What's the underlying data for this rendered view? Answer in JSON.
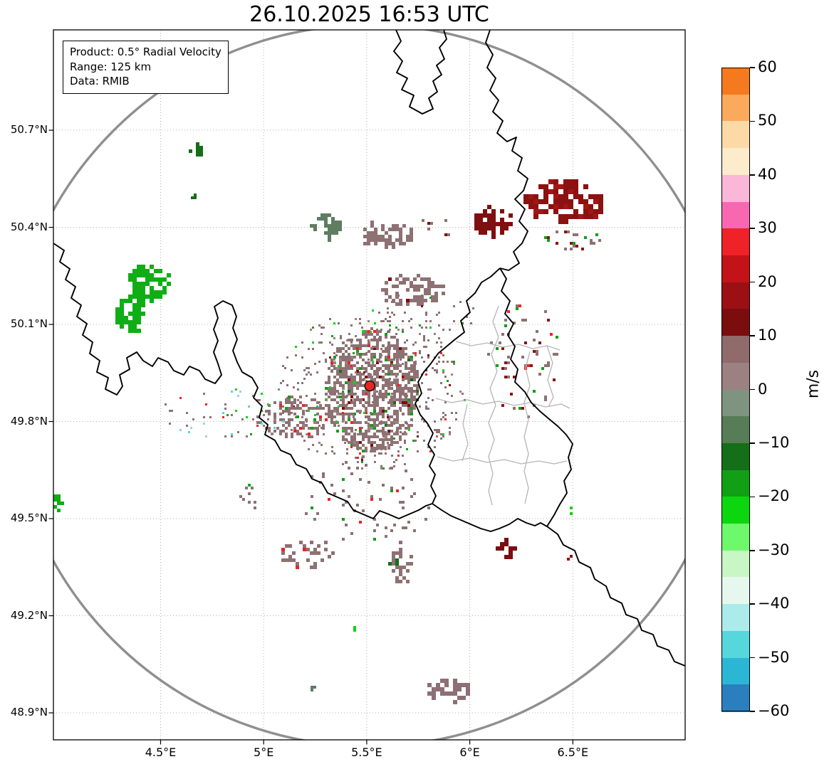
{
  "title": "26.10.2025 16:53 UTC",
  "info_box": {
    "lines": [
      "Product: 0.5° Radial Velocity",
      "Range: 125 km",
      "Data: RMIB"
    ]
  },
  "x_axis": {
    "ticks": [
      {
        "label": "4.5°E",
        "value": 4.5
      },
      {
        "label": "5°E",
        "value": 5.0
      },
      {
        "label": "5.5°E",
        "value": 5.5
      },
      {
        "label": "6°E",
        "value": 6.0
      },
      {
        "label": "6.5°E",
        "value": 6.5
      }
    ]
  },
  "y_axis": {
    "ticks": [
      {
        "label": "50.7°N",
        "value": 50.7
      },
      {
        "label": "50.4°N",
        "value": 50.4
      },
      {
        "label": "50.1°N",
        "value": 50.1
      },
      {
        "label": "49.8°N",
        "value": 49.8
      },
      {
        "label": "49.5°N",
        "value": 49.5
      },
      {
        "label": "49.2°N",
        "value": 49.2
      },
      {
        "label": "48.9°N",
        "value": 48.9
      }
    ]
  },
  "colorbar": {
    "label": "m/s",
    "ticks": [
      {
        "label": "60",
        "value": 60
      },
      {
        "label": "50",
        "value": 50
      },
      {
        "label": "40",
        "value": 40
      },
      {
        "label": "30",
        "value": 30
      },
      {
        "label": "20",
        "value": 20
      },
      {
        "label": "10",
        "value": 10
      },
      {
        "label": "0",
        "value": 0
      },
      {
        "label": "−10",
        "value": -10
      },
      {
        "label": "−20",
        "value": -20
      },
      {
        "label": "−30",
        "value": -30
      },
      {
        "label": "−40",
        "value": -40
      },
      {
        "label": "−50",
        "value": -50
      },
      {
        "label": "−60",
        "value": -60
      }
    ],
    "bands": [
      {
        "from": 55,
        "to": 60,
        "color": "#f5791f"
      },
      {
        "from": 50,
        "to": 55,
        "color": "#fbaa5d"
      },
      {
        "from": 45,
        "to": 50,
        "color": "#fdd9a6"
      },
      {
        "from": 40,
        "to": 45,
        "color": "#fdeccc"
      },
      {
        "from": 35,
        "to": 40,
        "color": "#fbb7d8"
      },
      {
        "from": 30,
        "to": 35,
        "color": "#f868b1"
      },
      {
        "from": 25,
        "to": 30,
        "color": "#ee2227"
      },
      {
        "from": 20,
        "to": 25,
        "color": "#c41318"
      },
      {
        "from": 15,
        "to": 20,
        "color": "#9a1013"
      },
      {
        "from": 10,
        "to": 15,
        "color": "#7c0d0f"
      },
      {
        "from": 5,
        "to": 10,
        "color": "#8f6b6c"
      },
      {
        "from": 0,
        "to": 5,
        "color": "#9b8182"
      },
      {
        "from": -5,
        "to": 0,
        "color": "#7e9480"
      },
      {
        "from": -10,
        "to": -5,
        "color": "#567d55"
      },
      {
        "from": -15,
        "to": -10,
        "color": "#156e18"
      },
      {
        "from": -20,
        "to": -15,
        "color": "#119f16"
      },
      {
        "from": -25,
        "to": -20,
        "color": "#0cd60e"
      },
      {
        "from": -30,
        "to": -25,
        "color": "#6ef86c"
      },
      {
        "from": -35,
        "to": -30,
        "color": "#c8f6c4"
      },
      {
        "from": -40,
        "to": -35,
        "color": "#e6f8ee"
      },
      {
        "from": -45,
        "to": -40,
        "color": "#abecea"
      },
      {
        "from": -50,
        "to": -45,
        "color": "#55d7dc"
      },
      {
        "from": -55,
        "to": -50,
        "color": "#2cb6d5"
      },
      {
        "from": -60,
        "to": -55,
        "color": "#2c7fbe"
      }
    ]
  },
  "chart_data": {
    "type": "heatmap",
    "title": "26.10.2025 16:53 UTC",
    "product": "0.5° Radial Velocity",
    "range_km": 125,
    "data_source": "RMIB",
    "units": "m/s",
    "value_range": [
      -60,
      60
    ],
    "x_range_lon_deg": [
      3.98,
      7.04
    ],
    "y_range_lat_deg": [
      48.82,
      51.01
    ],
    "radar_site": {
      "lon": 5.515,
      "lat": 49.91
    },
    "range_ring_km": 125,
    "echo_clusters": [
      {
        "name": "core-dense",
        "lon": 5.52,
        "lat": 49.9,
        "rx": 0.23,
        "ry": 0.19,
        "cells": 900,
        "cell": 4,
        "colors": {
          "#8e7173": 0.84,
          "#9b8182": 0.05,
          "#7c0d0f": 0.03,
          "#119f16": 0.03,
          "#ee2227": 0.02,
          "#0cd60e": 0.01,
          "#156e18": 0.02
        }
      },
      {
        "name": "core-halo",
        "lon": 5.52,
        "lat": 49.9,
        "rx": 0.45,
        "ry": 0.25,
        "cells": 430,
        "cell": 3,
        "colors": {
          "#8e7173": 0.8,
          "#9b8182": 0.06,
          "#7c0d0f": 0.04,
          "#119f16": 0.04,
          "#ee2227": 0.03,
          "#0cd60e": 0.03
        }
      },
      {
        "name": "west-arm",
        "lon": 5.155,
        "lat": 49.817,
        "rx": 0.19,
        "ry": 0.066,
        "cells": 140,
        "cell": 4,
        "colors": {
          "#8e7173": 0.82,
          "#9b8182": 0.08,
          "#119f16": 0.05,
          "#ee2227": 0.05
        }
      },
      {
        "name": "north-patch-1",
        "lon": 5.71,
        "lat": 50.21,
        "rx": 0.156,
        "ry": 0.048,
        "cells": 90,
        "cell": 5,
        "colors": {
          "#8e7173": 0.95,
          "#7c0d0f": 0.05
        }
      },
      {
        "name": "north-patch-2",
        "lon": 5.59,
        "lat": 50.38,
        "rx": 0.12,
        "ry": 0.044,
        "cells": 70,
        "cell": 5,
        "colors": {
          "#8e7173": 1
        }
      },
      {
        "name": "graygreen-patch",
        "lon": 5.3,
        "lat": 50.41,
        "rx": 0.074,
        "ry": 0.04,
        "cells": 50,
        "cell": 5,
        "colors": {
          "#5e7d61": 1
        }
      },
      {
        "name": "west-green-main",
        "lon": 4.43,
        "lat": 50.23,
        "rx": 0.1,
        "ry": 0.055,
        "cells": 85,
        "cell": 6,
        "colors": {
          "#0fae14": 1
        }
      },
      {
        "name": "west-green-lower",
        "lon": 4.345,
        "lat": 50.135,
        "rx": 0.075,
        "ry": 0.06,
        "cells": 65,
        "cell": 6,
        "colors": {
          "#0fae14": 1
        }
      },
      {
        "name": "nw-darkgreen",
        "lon": 4.668,
        "lat": 50.64,
        "rx": 0.036,
        "ry": 0.026,
        "cells": 14,
        "cell": 5,
        "colors": {
          "#156e18": 1
        }
      },
      {
        "name": "nw-darkgreen-speck",
        "lon": 4.654,
        "lat": 50.5,
        "rx": 0.015,
        "ry": 0.012,
        "cells": 4,
        "cell": 4,
        "colors": {
          "#156e18": 1
        }
      },
      {
        "name": "ne-darkred-main",
        "lon": 6.45,
        "lat": 50.485,
        "rx": 0.19,
        "ry": 0.064,
        "cells": 105,
        "cell": 7,
        "colors": {
          "#8b1211": 0.85,
          "#a31516": 0.15
        }
      },
      {
        "name": "ne-darkred-2",
        "lon": 6.105,
        "lat": 50.42,
        "rx": 0.097,
        "ry": 0.048,
        "cells": 55,
        "cell": 6,
        "colors": {
          "#7f0f10": 1
        }
      },
      {
        "name": "ne-scatter",
        "lon": 6.5,
        "lat": 50.366,
        "rx": 0.155,
        "ry": 0.033,
        "cells": 24,
        "cell": 4,
        "colors": {
          "#8e7173": 0.45,
          "#8b1211": 0.3,
          "#119f16": 0.25
        }
      },
      {
        "name": "east-specks",
        "lon": 6.26,
        "lat": 50.0,
        "rx": 0.17,
        "ry": 0.19,
        "cells": 60,
        "cell": 4,
        "colors": {
          "#8e7173": 0.55,
          "#8b1211": 0.2,
          "#119f16": 0.15,
          "#ee2227": 0.1
        }
      },
      {
        "name": "n-specks",
        "lon": 5.82,
        "lat": 50.4,
        "rx": 0.1,
        "ry": 0.03,
        "cells": 8,
        "cell": 4,
        "colors": {
          "#8e7173": 0.8,
          "#7c0d0f": 0.2
        }
      },
      {
        "name": "mid-north-specks",
        "lon": 5.76,
        "lat": 50.135,
        "rx": 0.28,
        "ry": 0.066,
        "cells": 45,
        "cell": 3,
        "colors": {
          "#8e7173": 0.85,
          "#119f16": 0.08,
          "#7c0d0f": 0.07
        }
      },
      {
        "name": "sw-speckles",
        "lon": 4.8,
        "lat": 49.828,
        "rx": 0.31,
        "ry": 0.077,
        "cells": 55,
        "cell": 3,
        "colors": {
          "#8e7173": 0.5,
          "#0cd60e": 0.12,
          "#ee2227": 0.1,
          "#55d7dc": 0.1,
          "#9bd0ea": 0.08,
          "#119f16": 0.1
        }
      },
      {
        "name": "mid-south-scatter",
        "lon": 5.5,
        "lat": 49.563,
        "rx": 0.33,
        "ry": 0.132,
        "cells": 65,
        "cell": 4,
        "colors": {
          "#8e7173": 0.86,
          "#119f16": 0.07,
          "#ee2227": 0.07
        }
      },
      {
        "name": "south-scatter-2",
        "lon": 4.93,
        "lat": 49.575,
        "rx": 0.06,
        "ry": 0.04,
        "cells": 10,
        "cell": 4,
        "colors": {
          "#8e7173": 0.8,
          "#0fae14": 0.2
        }
      },
      {
        "name": "south-darkred",
        "lon": 6.17,
        "lat": 49.41,
        "rx": 0.045,
        "ry": 0.026,
        "cells": 16,
        "cell": 6,
        "colors": {
          "#7c0d0f": 1
        }
      },
      {
        "name": "se-red-speck",
        "lon": 6.485,
        "lat": 49.377,
        "rx": 0.012,
        "ry": 0.01,
        "cells": 3,
        "cell": 4,
        "colors": {
          "#8b1211": 1
        }
      },
      {
        "name": "south-mauve-1",
        "lon": 5.2,
        "lat": 49.392,
        "rx": 0.145,
        "ry": 0.048,
        "cells": 35,
        "cell": 5,
        "colors": {
          "#8e7173": 0.9,
          "#ee2227": 0.1
        }
      },
      {
        "name": "south-mauve-2",
        "lon": 5.663,
        "lat": 49.362,
        "rx": 0.055,
        "ry": 0.069,
        "cells": 35,
        "cell": 5,
        "colors": {
          "#8e7173": 0.92,
          "#156e18": 0.08
        }
      },
      {
        "name": "se-green-speck",
        "lon": 6.485,
        "lat": 49.531,
        "rx": 0.012,
        "ry": 0.01,
        "cells": 3,
        "cell": 4,
        "colors": {
          "#0cd60e": 1
        }
      },
      {
        "name": "s-green-speck",
        "lon": 5.44,
        "lat": 49.168,
        "rx": 0.01,
        "ry": 0.01,
        "cells": 3,
        "cell": 4,
        "colors": {
          "#0cd60e": 1
        }
      },
      {
        "name": "left-edge-green",
        "lon": 3.99,
        "lat": 49.548,
        "rx": 0.02,
        "ry": 0.035,
        "cells": 9,
        "cell": 5,
        "colors": {
          "#0fae14": 1
        }
      },
      {
        "name": "bottom-mauve",
        "lon": 5.884,
        "lat": 48.975,
        "rx": 0.117,
        "ry": 0.037,
        "cells": 40,
        "cell": 6,
        "colors": {
          "#8d6f75": 1
        }
      },
      {
        "name": "bottom-graygreen-speck",
        "lon": 5.231,
        "lat": 48.979,
        "rx": 0.02,
        "ry": 0.01,
        "cells": 4,
        "cell": 4,
        "colors": {
          "#5e7d61": 1
        }
      }
    ]
  }
}
